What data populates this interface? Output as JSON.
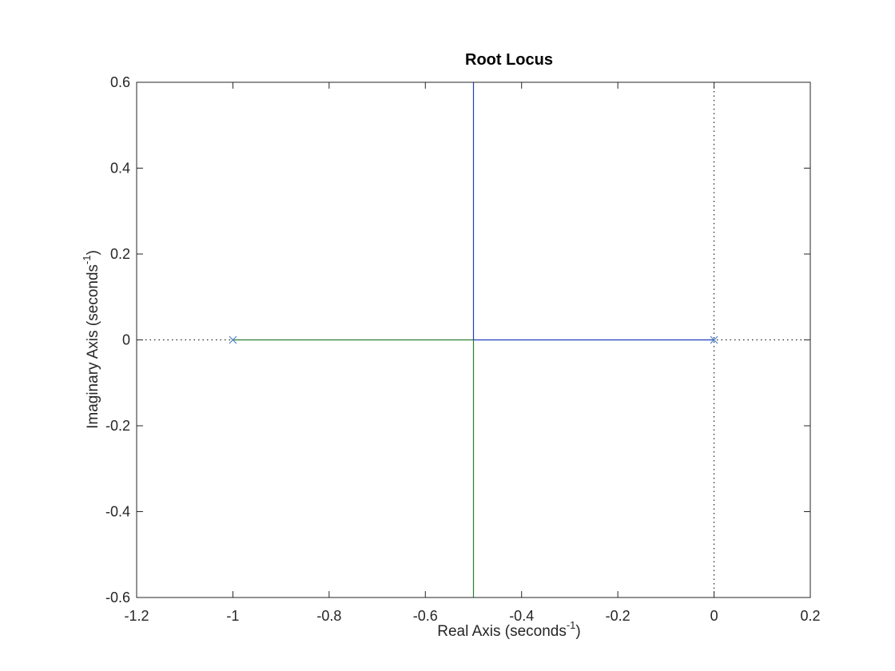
{
  "chart_data": {
    "type": "scatter",
    "title": "Root Locus",
    "xlabel": {
      "text": "Real Axis (seconds",
      "superscript": "-1",
      "suffix": ")"
    },
    "ylabel": {
      "text": "Imaginary Axis (seconds",
      "superscript": "-1",
      "suffix": ")"
    },
    "xlim": [
      -1.2,
      0.2
    ],
    "ylim": [
      -0.6,
      0.6
    ],
    "xticks": [
      -1.2,
      -1.0,
      -0.8,
      -0.6,
      -0.4,
      -0.2,
      0.0,
      0.2
    ],
    "xtick_labels": [
      "-1.2",
      "-1",
      "-0.8",
      "-0.6",
      "-0.4",
      "-0.2",
      "0",
      "0.2"
    ],
    "yticks": [
      -0.6,
      -0.4,
      -0.2,
      0.0,
      0.2,
      0.4,
      0.6
    ],
    "ytick_labels": [
      "-0.6",
      "-0.4",
      "-0.2",
      "0",
      "0.2",
      "0.4",
      "0.6"
    ],
    "grid": false,
    "poles": [
      {
        "x": -1,
        "y": 0
      },
      {
        "x": 0,
        "y": 0
      }
    ],
    "reference_lines": [
      {
        "orientation": "horizontal",
        "value": 0,
        "style": "dotted"
      },
      {
        "orientation": "vertical",
        "value": 0,
        "style": "dotted"
      }
    ],
    "series": [
      {
        "color": "#2e7d32",
        "x": [
          -1,
          -0.5,
          -0.5
        ],
        "y": [
          0,
          0,
          -0.6
        ]
      },
      {
        "color": "#1f3fbf",
        "x": [
          0,
          -0.5,
          -0.5
        ],
        "y": [
          0,
          0,
          0.6
        ]
      }
    ],
    "colors": {
      "pole_marker": "#4a7fbf",
      "axes": "#262626"
    }
  }
}
